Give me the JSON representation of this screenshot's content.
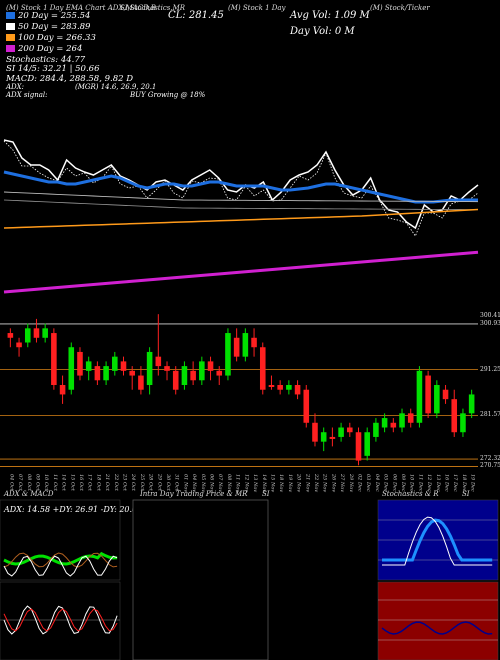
{
  "header": {
    "top_line": "(M) Stock 1 Day EMA Chart ADX,MACD,B",
    "mid": "SI,Stochastics,MR",
    "dots": "(M) Stock 1 Day",
    "right": "(M) Stock/Ticker"
  },
  "legend": [
    {
      "label": "20  Day = 255.54",
      "color": "#1e6fe0"
    },
    {
      "label": "50  Day = 283.89",
      "color": "#ffffff"
    },
    {
      "label": "100  Day = 266.33",
      "color": "#ff9a1a"
    },
    {
      "label": "200  Day = 264",
      "color": "#d020d0"
    }
  ],
  "close_label": "CL: 281.45",
  "vol_label": "Avg Vol: 1.09  M",
  "day_vol_label": "Day Vol: 0    M",
  "indicators": {
    "stochastics": "Stochastics: 44.77",
    "si": "SI 14/5: 32.21 | 50.66",
    "macd": "MACD: 284.4, 288.58, 9.82  D",
    "adx": "ADX:",
    "adx_vals": "(MGR) 14.6,  26.9,  20.1",
    "adx_signal": "ADX  signal:",
    "adx_signal_val": "BUY Growing  @ 18%"
  },
  "panels": {
    "adx_macd": "ADX  & MACD",
    "intraday": "Intra  Day Trading Price  & MR",
    "intraday_si": "SI",
    "stoch": "Stochastics & R",
    "stoch_si": "SI"
  },
  "chart_data": {
    "type": "candlestick",
    "title": "",
    "price_levels": [
      {
        "value": 300.93,
        "label": "300.93",
        "color": "#ffffff"
      },
      {
        "value": 291.25,
        "label": "291.25",
        "color": "#ff9a1a"
      },
      {
        "value": 281.57,
        "label": "281.57",
        "color": "#ff9a1a"
      },
      {
        "value": 272.32,
        "label": "272.32",
        "color": "#ff9a1a"
      },
      {
        "value": 270.75,
        "label": "270.75",
        "color": "#ff9a1a"
      }
    ],
    "top_right_label": "300.41",
    "dates": [
      "04 Oct",
      "07 Oct",
      "08 Oct",
      "09 Oct",
      "10 Oct",
      "11 Oct",
      "14 Oct",
      "15 Oct",
      "16 Oct",
      "17 Oct",
      "18 Oct",
      "21 Oct",
      "22 Oct",
      "23 Oct",
      "24 Oct",
      "25 Oct",
      "28 Oct",
      "29 Oct",
      "30 Oct",
      "31 Oct",
      "01 Nov",
      "04 Nov",
      "05 Nov",
      "06 Nov",
      "07 Nov",
      "08 Nov",
      "11 Nov",
      "12 Nov",
      "13 Nov",
      "14 Nov",
      "15 Nov",
      "18 Nov",
      "19 Nov",
      "20 Nov",
      "21 Nov",
      "22 Nov",
      "25 Nov",
      "26 Nov",
      "27 Nov",
      "29 Nov",
      "02 Dec",
      "03 Dec",
      "04 Dec",
      "05 Dec",
      "06 Dec",
      "09 Dec",
      "10 Dec",
      "11 Dec",
      "12 Dec",
      "13 Dec",
      "16 Dec",
      "17 Dec",
      "18 Dec",
      "19 Dec"
    ],
    "candles": [
      [
        298,
        299,
        296,
        300,
        "r"
      ],
      [
        296,
        297,
        294,
        298,
        "r"
      ],
      [
        297,
        300,
        296,
        301,
        "g"
      ],
      [
        300,
        298,
        297,
        302,
        "r"
      ],
      [
        298,
        300,
        297,
        301,
        "g"
      ],
      [
        299,
        288,
        287,
        300,
        "r"
      ],
      [
        288,
        286,
        284,
        290,
        "r"
      ],
      [
        287,
        296,
        286,
        297,
        "g"
      ],
      [
        295,
        290,
        289,
        296,
        "r"
      ],
      [
        291,
        293,
        289,
        294,
        "g"
      ],
      [
        292,
        289,
        288,
        293,
        "r"
      ],
      [
        289,
        292,
        288,
        293,
        "g"
      ],
      [
        291,
        294,
        290,
        295,
        "g"
      ],
      [
        293,
        291,
        290,
        294,
        "r"
      ],
      [
        291,
        290,
        287,
        292,
        "r"
      ],
      [
        290,
        287,
        286,
        292,
        "r"
      ],
      [
        288,
        295,
        286,
        296,
        "g"
      ],
      [
        294,
        292,
        290,
        303,
        "r"
      ],
      [
        292,
        291,
        289,
        293,
        "r"
      ],
      [
        291,
        287,
        286,
        292,
        "r"
      ],
      [
        288,
        292,
        287,
        293,
        "g"
      ],
      [
        291,
        289,
        288,
        293,
        "r"
      ],
      [
        289,
        293,
        288,
        294,
        "g"
      ],
      [
        293,
        291,
        289,
        294,
        "r"
      ],
      [
        291,
        290,
        288,
        292,
        "r"
      ],
      [
        290,
        299,
        289,
        300,
        "g"
      ],
      [
        298,
        294,
        293,
        300,
        "r"
      ],
      [
        294,
        299,
        293,
        300,
        "g"
      ],
      [
        298,
        296,
        294,
        300,
        "r"
      ],
      [
        296,
        287,
        286,
        297,
        "r"
      ],
      [
        288,
        288,
        287,
        290,
        "r"
      ],
      [
        288,
        287,
        286,
        289,
        "r"
      ],
      [
        287,
        288,
        286,
        289,
        "g"
      ],
      [
        288,
        286,
        285,
        289,
        "r"
      ],
      [
        287,
        280,
        279,
        288,
        "r"
      ],
      [
        280,
        276,
        275,
        282,
        "r"
      ],
      [
        276,
        278,
        274,
        279,
        "g"
      ],
      [
        277,
        277,
        275,
        279,
        "r"
      ],
      [
        277,
        279,
        276,
        280,
        "g"
      ],
      [
        279,
        278,
        277,
        280,
        "r"
      ],
      [
        278,
        272,
        271,
        279,
        "r"
      ],
      [
        273,
        278,
        272,
        279,
        "g"
      ],
      [
        277,
        280,
        276,
        281,
        "g"
      ],
      [
        279,
        281,
        278,
        282,
        "g"
      ],
      [
        280,
        279,
        278,
        281,
        "r"
      ],
      [
        279,
        282,
        278,
        283,
        "g"
      ],
      [
        282,
        280,
        279,
        283,
        "r"
      ],
      [
        280,
        291,
        279,
        292,
        "g"
      ],
      [
        290,
        282,
        281,
        291,
        "r"
      ],
      [
        282,
        288,
        281,
        289,
        "g"
      ],
      [
        287,
        285,
        284,
        288,
        "r"
      ],
      [
        285,
        278,
        277,
        287,
        "r"
      ],
      [
        278,
        282,
        277,
        283,
        "g"
      ],
      [
        282,
        286,
        281,
        287,
        "g"
      ]
    ]
  }
}
